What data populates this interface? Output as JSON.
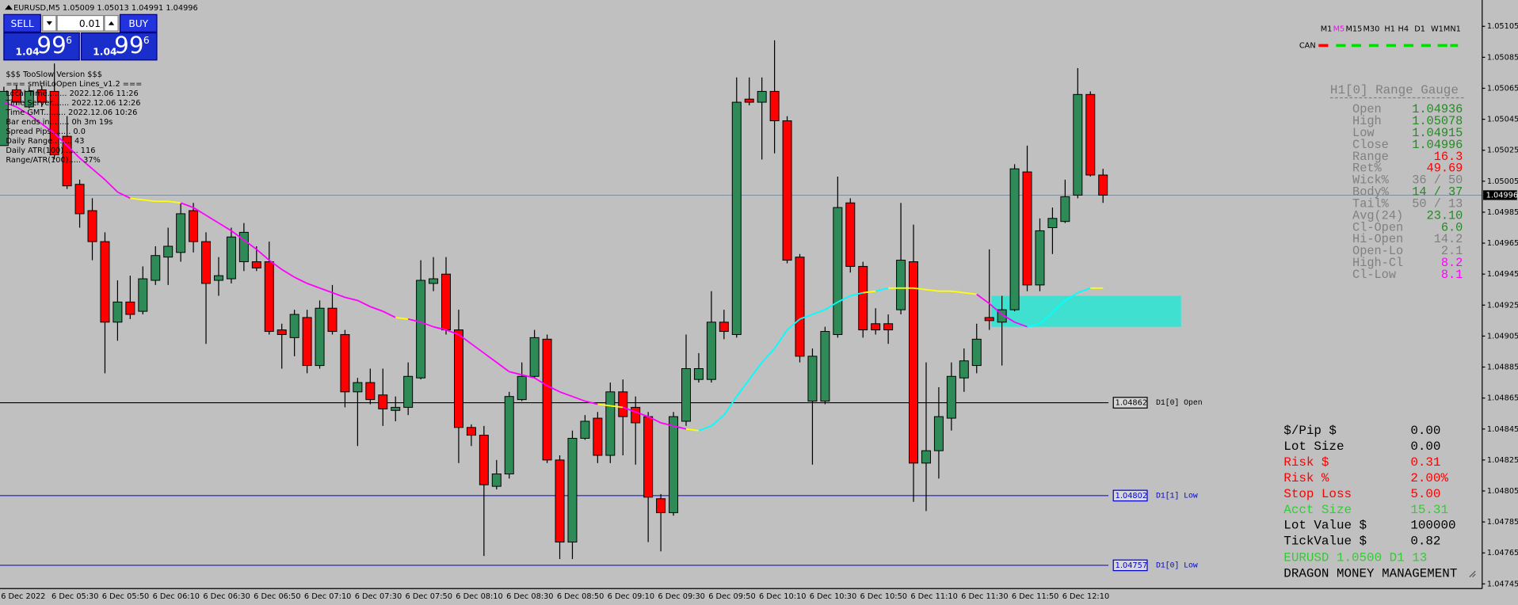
{
  "chart_data": {
    "type": "candlestick",
    "title": "EURUSD,M5  1.05009 1.05013 1.04991 1.04996",
    "categories": [
      "6 Dec 2022",
      null,
      null,
      null,
      "6 Dec 05:30",
      null,
      null,
      null,
      "6 Dec 05:50",
      null,
      null,
      null,
      "6 Dec 06:10",
      null,
      null,
      null,
      "6 Dec 06:30",
      null,
      null,
      null,
      "6 Dec 06:50",
      null,
      null,
      null,
      "6 Dec 07:10",
      null,
      null,
      null,
      "6 Dec 07:30",
      null,
      null,
      null,
      "6 Dec 07:50",
      null,
      null,
      null,
      "6 Dec 08:10",
      null,
      null,
      null,
      "6 Dec 08:30",
      null,
      null,
      null,
      "6 Dec 08:50",
      null,
      null,
      null,
      "6 Dec 09:10",
      null,
      null,
      null,
      "6 Dec 09:30",
      null,
      null,
      null,
      "6 Dec 09:50",
      null,
      null,
      null,
      "6 Dec 10:10",
      null,
      null,
      null,
      "6 Dec 10:30",
      null,
      null,
      null,
      "6 Dec 10:50",
      null,
      null,
      null,
      "6 Dec 11:10",
      null,
      null,
      null,
      "6 Dec 11:30",
      null,
      null,
      null,
      "6 Dec 11:50",
      null,
      null,
      null,
      "6 Dec 12:10",
      null,
      null,
      null
    ],
    "open": [
      1.05028,
      1.05064,
      1.05053,
      1.05064,
      1.05063,
      1.05034,
      1.05003,
      1.04986,
      1.04966,
      1.04914,
      1.04927,
      1.04921,
      1.04941,
      1.04956,
      1.04959,
      1.04986,
      1.04966,
      1.04941,
      1.04942,
      1.04953,
      1.04953,
      1.04953,
      1.04909,
      1.04904,
      1.04917,
      1.04886,
      1.04923,
      1.04906,
      1.04869,
      1.04875,
      1.04867,
      1.04857,
      1.04859,
      1.04878,
      1.04939,
      1.04945,
      1.04909,
      1.04846,
      1.04841,
      1.04808,
      1.04816,
      1.04864,
      1.04879,
      1.04903,
      1.04825,
      1.04772,
      1.04839,
      1.04852,
      1.04828,
      1.04869,
      1.04859,
      1.04853,
      1.048,
      1.04791,
      1.0485,
      1.04877,
      1.04877,
      1.04914,
      1.04906,
      1.05058,
      1.05056,
      1.05063,
      1.05044,
      1.04956,
      1.04863,
      1.04863,
      1.04906,
      1.04991,
      1.0495,
      1.04913,
      1.04913,
      1.04922,
      1.04953,
      1.04823,
      1.04831,
      1.04852,
      1.04878,
      1.04886,
      1.04917,
      1.04914,
      1.04922,
      1.05011,
      1.04938,
      1.04975,
      1.04979,
      1.04996,
      1.05061,
      1.05009
    ],
    "high": [
      1.05066,
      1.05067,
      1.05066,
      1.05067,
      1.05081,
      1.05047,
      1.05006,
      1.04994,
      1.04972,
      1.04941,
      1.04944,
      1.0495,
      1.04963,
      1.04975,
      1.04991,
      1.04991,
      1.04972,
      1.04956,
      1.04975,
      1.04978,
      1.04963,
      1.04966,
      1.04913,
      1.04922,
      1.04922,
      1.04928,
      1.04938,
      1.04909,
      1.04878,
      1.04884,
      1.04884,
      1.04866,
      1.04888,
      1.04954,
      1.04956,
      1.04956,
      1.04922,
      1.04848,
      1.04847,
      1.04825,
      1.04869,
      1.04888,
      1.04909,
      1.04906,
      1.04828,
      1.04844,
      1.04854,
      1.04856,
      1.04875,
      1.04877,
      1.04866,
      1.04856,
      1.04803,
      1.04856,
      1.04906,
      1.04894,
      1.04934,
      1.04922,
      1.05072,
      1.05072,
      1.05072,
      1.05096,
      1.05047,
      1.04958,
      1.04897,
      1.04911,
      1.05008,
      1.04994,
      1.04953,
      1.04923,
      1.04919,
      1.04991,
      1.04977,
      1.04888,
      1.04872,
      1.04888,
      1.04897,
      1.04913,
      1.04961,
      1.04931,
      1.05016,
      1.05028,
      1.04981,
      1.04988,
      1.05006,
      1.05078,
      1.05063,
      1.05013
    ],
    "low": [
      1.05028,
      1.05054,
      1.05052,
      1.05053,
      1.05019,
      1.05,
      1.04975,
      1.04954,
      1.04881,
      1.04902,
      1.04916,
      1.04919,
      1.04938,
      1.04938,
      1.04953,
      1.04959,
      1.049,
      1.04931,
      1.04939,
      1.04947,
      1.04947,
      1.04906,
      1.04884,
      1.04892,
      1.04881,
      1.04884,
      1.04906,
      1.04859,
      1.04834,
      1.04861,
      1.04847,
      1.0485,
      1.04854,
      1.04877,
      1.04934,
      1.04906,
      1.04823,
      1.04834,
      1.04763,
      1.04806,
      1.04813,
      1.04863,
      1.04878,
      1.04823,
      1.04761,
      1.04761,
      1.04838,
      1.04823,
      1.04823,
      1.04828,
      1.04822,
      1.04772,
      1.04766,
      1.04789,
      1.04847,
      1.04875,
      1.04875,
      1.04903,
      1.04904,
      1.05054,
      1.05019,
      1.05023,
      1.04952,
      1.04888,
      1.04822,
      1.04861,
      1.04904,
      1.04946,
      1.04904,
      1.04906,
      1.049,
      1.04919,
      1.04798,
      1.04792,
      1.04813,
      1.04844,
      1.04869,
      1.04881,
      1.04909,
      1.04886,
      1.04921,
      1.04934,
      1.04934,
      1.04958,
      1.04978,
      1.04994,
      1.05008,
      1.04991
    ],
    "close": [
      1.05063,
      1.05056,
      1.05063,
      1.05056,
      1.05022,
      1.05002,
      1.04984,
      1.04966,
      1.04914,
      1.04927,
      1.04919,
      1.04942,
      1.04957,
      1.04963,
      1.04984,
      1.04966,
      1.04939,
      1.04944,
      1.04969,
      1.04972,
      1.04949,
      1.04908,
      1.04906,
      1.04919,
      1.04886,
      1.04923,
      1.04908,
      1.04869,
      1.04875,
      1.04864,
      1.04858,
      1.04859,
      1.04879,
      1.04941,
      1.04942,
      1.04909,
      1.04846,
      1.04841,
      1.04809,
      1.04816,
      1.04866,
      1.04879,
      1.04904,
      1.04825,
      1.04772,
      1.04839,
      1.0485,
      1.04828,
      1.04869,
      1.04853,
      1.04849,
      1.04801,
      1.04791,
      1.04853,
      1.04884,
      1.04884,
      1.04914,
      1.04908,
      1.05056,
      1.05056,
      1.05063,
      1.05044,
      1.04954,
      1.04892,
      1.04892,
      1.04908,
      1.04988,
      1.0495,
      1.04909,
      1.04909,
      1.04909,
      1.04954,
      1.04823,
      1.04831,
      1.04853,
      1.04879,
      1.04889,
      1.04903,
      1.04915,
      1.04922,
      1.05013,
      1.04938,
      1.04973,
      1.04981,
      1.04995,
      1.05061,
      1.05009,
      1.04996
    ],
    "up_color": "#2e8b57",
    "down_color": "#ff0000",
    "ylim": [
      1.04742,
      1.05122
    ],
    "yticks": [
      1.04745,
      1.04765,
      1.04785,
      1.04805,
      1.04825,
      1.04845,
      1.04865,
      1.04885,
      1.04905,
      1.04925,
      1.04945,
      1.04965,
      1.04985,
      1.05005,
      1.05025,
      1.05045,
      1.05065,
      1.05085,
      1.05105
    ],
    "grid": false,
    "current_price": {
      "value": 1.04996,
      "color": "#778899"
    },
    "levels": [
      {
        "value": 1.04862,
        "label": "D1[0] Open",
        "color": "#000000"
      },
      {
        "value": 1.04802,
        "label": "D1[1] Low",
        "color": "#0000cd"
      },
      {
        "value": 1.04757,
        "label": "D1[0] Low",
        "color": "#0000cd"
      }
    ],
    "zone": {
      "top": 1.04931,
      "bottom": 1.04911,
      "color": "#40e0d0"
    },
    "ma": {
      "values": [
        1.05056,
        1.05053,
        1.05048,
        1.05042,
        1.05036,
        1.05028,
        1.0502,
        1.05013,
        1.05006,
        1.04998,
        1.04994,
        1.04993,
        1.04992,
        1.04992,
        1.04991,
        1.04988,
        1.04983,
        1.04978,
        1.04973,
        1.04967,
        1.04961,
        1.04954,
        1.04948,
        1.04943,
        1.04939,
        1.04936,
        1.04933,
        1.0493,
        1.04928,
        1.04924,
        1.04921,
        1.04917,
        1.04916,
        1.04914,
        1.04911,
        1.04909,
        1.04906,
        1.049,
        1.04894,
        1.04888,
        1.04882,
        1.0488,
        1.04878,
        1.04873,
        1.04869,
        1.04866,
        1.04863,
        1.04861,
        1.0486,
        1.04859,
        1.04856,
        1.04853,
        1.04849,
        1.04847,
        1.04845,
        1.04844,
        1.04847,
        1.04854,
        1.04866,
        1.04877,
        1.04888,
        1.04897,
        1.04909,
        1.04916,
        1.04919,
        1.04922,
        1.04927,
        1.04931,
        1.04933,
        1.04934,
        1.04936,
        1.04936,
        1.04936,
        1.04935,
        1.04934,
        1.04934,
        1.04933,
        1.04932,
        1.04926,
        1.04919,
        1.04914,
        1.04911,
        1.04913,
        1.0492,
        1.04928,
        1.04933,
        1.04936,
        1.04936
      ],
      "up_color": "#00ffff",
      "down_color": "#ff00ff",
      "flat_color": "#ffff00"
    }
  },
  "trade_panel": {
    "sell": "SELL",
    "buy": "BUY",
    "lots": "0.01",
    "bid": {
      "big": "1.04",
      "pips": "99",
      "point": "6"
    },
    "ask": {
      "big": "1.04",
      "pips": "99",
      "point": "6"
    }
  },
  "info_lines": [
    "$$$ TooSlow Version $$$",
    "=== smHiLoOpen Lines_v1.2 ===",
    "Local Time........ 2022.12.06 11:26",
    "Time Server....... 2022.12.06 12:26",
    "Time GMT......... 2022.12.06 10:26",
    "Bar ends in........ 0h 3m 19s",
    "Spread Pips........ 0.0",
    "Daily Range........ 43",
    "Daily ATR(100)...... 116",
    "Range/ATR(100)..... 37%"
  ],
  "timeframes": {
    "items": [
      "M1",
      "M5",
      "M15",
      "M30",
      "H1",
      "H4",
      "D1",
      "W1",
      "MN1"
    ],
    "active": "M5",
    "active_color": "#ff00ff",
    "label": "CAN"
  },
  "gauge": {
    "title": "H1[0] Range Gauge",
    "rows": [
      {
        "label": "Open",
        "value": "1.04936",
        "color": "#228b22"
      },
      {
        "label": "High",
        "value": "1.05078",
        "color": "#228b22"
      },
      {
        "label": "Low",
        "value": "1.04915",
        "color": "#228b22"
      },
      {
        "label": "Close",
        "value": "1.04996",
        "color": "#228b22"
      },
      {
        "label": "Range",
        "value": "16.3",
        "color": "#ff0000"
      },
      {
        "label": "Ret%",
        "value": "49.69",
        "color": "#ff0000"
      },
      {
        "label": "Wick%",
        "value": "36 / 50",
        "color": "#808080"
      },
      {
        "label": "Body%",
        "value": "14 / 37",
        "color": "#228b22"
      },
      {
        "label": "Tail%",
        "value": "50 / 13",
        "color": "#808080"
      },
      {
        "label": "Avg(24)",
        "value": "23.10",
        "color": "#228b22"
      },
      {
        "label": "Cl-Open",
        "value": "6.0",
        "color": "#228b22"
      },
      {
        "label": "Hi-Open",
        "value": "14.2",
        "color": "#808080"
      },
      {
        "label": "Open-Lo",
        "value": "2.1",
        "color": "#808080"
      },
      {
        "label": "High-Cl",
        "value": "8.2",
        "color": "#ff00ff"
      },
      {
        "label": "Cl-Low",
        "value": "8.1",
        "color": "#ff00ff"
      }
    ]
  },
  "money": {
    "rows": [
      {
        "label": "$/Pip $",
        "value": "0.00",
        "color": "#000000"
      },
      {
        "label": "Lot Size",
        "value": "0.00",
        "color": "#000000"
      },
      {
        "label": "Risk $",
        "value": "0.31",
        "color": "#ff0000"
      },
      {
        "label": "Risk %",
        "value": "2.00%",
        "color": "#ff0000"
      },
      {
        "label": "Stop Loss",
        "value": "5.00",
        "color": "#ff0000"
      },
      {
        "label": "Acct Size",
        "value": "15.31",
        "color": "#32cd32"
      },
      {
        "label": "Lot Value $",
        "value": "100000",
        "color": "#000000"
      },
      {
        "label": "TickValue $",
        "value": "0.82",
        "color": "#000000"
      }
    ],
    "footer": [
      {
        "text": "EURUSD 1.0500 D1 13",
        "color": "#32cd32"
      },
      {
        "text": "DRAGON MONEY MANAGEMENT",
        "color": "#000000"
      }
    ]
  }
}
